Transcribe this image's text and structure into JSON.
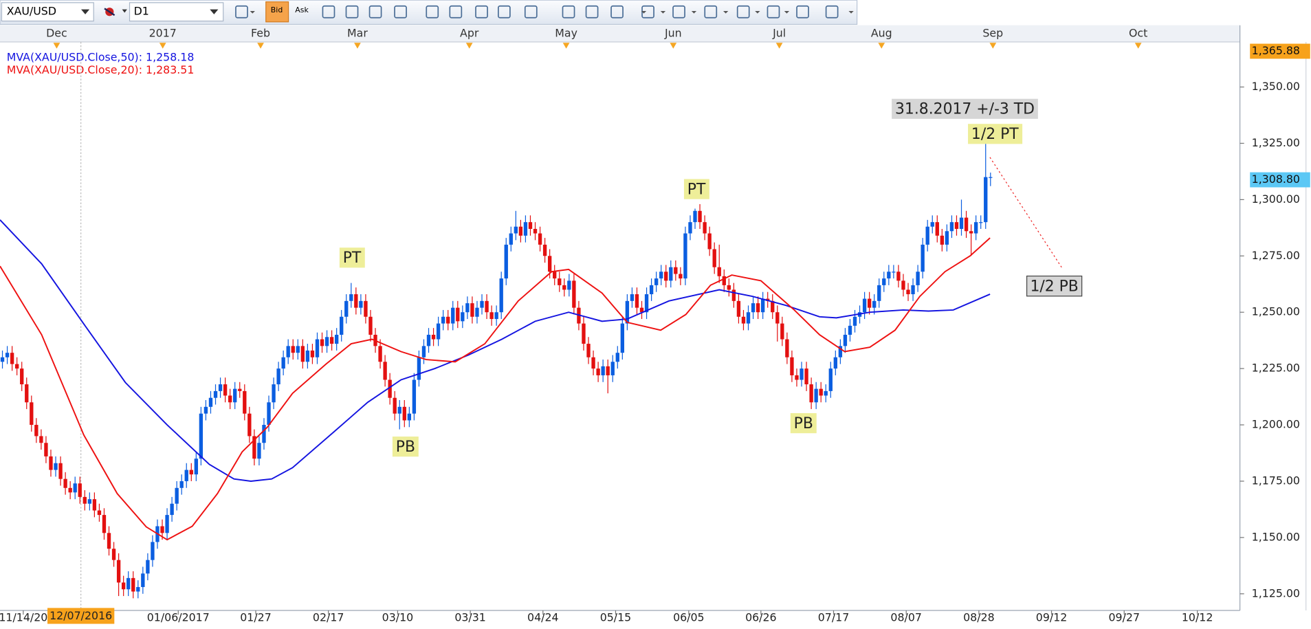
{
  "toolbar": {
    "timeframe": "D1",
    "bid": "Bid",
    "ask": "Ask"
  },
  "chart_data": {
    "type": "candlestick",
    "xlim": [
      0,
      256
    ],
    "ylim": [
      1117.6,
      1370
    ],
    "yticks": [
      {
        "value": 1125,
        "label": "1,125.00"
      },
      {
        "value": 1150,
        "label": "1,150.00"
      },
      {
        "value": 1175,
        "label": "1,175.00"
      },
      {
        "value": 1200,
        "label": "1,200.00"
      },
      {
        "value": 1225,
        "label": "1,225.00"
      },
      {
        "value": 1250,
        "label": "1,250.00"
      },
      {
        "value": 1275,
        "label": "1,275.00"
      },
      {
        "value": 1300,
        "label": "1,300.00"
      },
      {
        "value": 1325,
        "label": "1,325.00"
      },
      {
        "value": 1350,
        "label": "1,350.00"
      }
    ],
    "price_labels": [
      {
        "value": 1365.88,
        "label": "1,365.88",
        "color": "#f7a21b"
      },
      {
        "value": 1308.8,
        "label": "1,308.80",
        "color": "#5cc8f5"
      }
    ],
    "xticks": [
      {
        "value": 4.8,
        "label": "11/14/20"
      },
      {
        "value": 36.8,
        "label": "01/06/2017"
      },
      {
        "value": 52.8,
        "label": "01/27"
      },
      {
        "value": 67.8,
        "label": "02/17"
      },
      {
        "value": 82.1,
        "label": "03/10"
      },
      {
        "value": 97.1,
        "label": "03/31"
      },
      {
        "value": 112.1,
        "label": "04/24"
      },
      {
        "value": 127.1,
        "label": "05/15"
      },
      {
        "value": 142.2,
        "label": "06/05"
      },
      {
        "value": 157.1,
        "label": "06/26"
      },
      {
        "value": 172.1,
        "label": "07/17"
      },
      {
        "value": 187.1,
        "label": "08/07"
      },
      {
        "value": 202.1,
        "label": "08/28"
      },
      {
        "value": 217.1,
        "label": "09/12"
      },
      {
        "value": 232.1,
        "label": "09/27"
      },
      {
        "value": 247.2,
        "label": "10/12"
      }
    ],
    "x2ticks": [
      {
        "value": 11.7,
        "label": "Dec"
      },
      {
        "value": 33.6,
        "label": "2017"
      },
      {
        "value": 53.8,
        "label": "Feb"
      },
      {
        "value": 73.8,
        "label": "Mar"
      },
      {
        "value": 96.9,
        "label": "Apr"
      },
      {
        "value": 116.9,
        "label": "May"
      },
      {
        "value": 139,
        "label": "Jun"
      },
      {
        "value": 160.9,
        "label": "Jul"
      },
      {
        "value": 182,
        "label": "Aug"
      },
      {
        "value": 205,
        "label": "Sep"
      },
      {
        "value": 235,
        "label": "Oct"
      }
    ],
    "cursor": {
      "value": 16.7,
      "label": "12/07/2016",
      "color": "#f7a21b"
    },
    "series": [
      {
        "name": "XAU/USD",
        "type": "candlestick",
        "up_color": "#0b5ee0",
        "down_color": "#e31010",
        "open": [
          1228,
          1230,
          1232,
          1227,
          1225,
          1218,
          1210,
          1200,
          1195,
          1192,
          1186,
          1180,
          1183,
          1176,
          1172,
          1170,
          1174,
          1168,
          1165,
          1167,
          1162,
          1160,
          1152,
          1145,
          1140,
          1130,
          1127,
          1132,
          1126,
          1128,
          1134,
          1140,
          1148,
          1155,
          1152,
          1160,
          1165,
          1172,
          1175,
          1180,
          1178,
          1185,
          1205,
          1208,
          1212,
          1215,
          1218,
          1213,
          1210,
          1216,
          1215,
          1205,
          1195,
          1185,
          1192,
          1200,
          1210,
          1218,
          1225,
          1230,
          1235,
          1232,
          1235,
          1228,
          1233,
          1230,
          1238,
          1235,
          1239,
          1236,
          1240,
          1248,
          1255,
          1258,
          1252,
          1255,
          1248,
          1240,
          1235,
          1228,
          1220,
          1212,
          1205,
          1208,
          1202,
          1205,
          1220,
          1230,
          1235,
          1240,
          1238,
          1245,
          1248,
          1245,
          1252,
          1246,
          1250,
          1254,
          1248,
          1252,
          1255,
          1250,
          1247,
          1250,
          1265,
          1280,
          1285,
          1288,
          1284,
          1290,
          1287,
          1285,
          1280,
          1275,
          1268,
          1265,
          1262,
          1260,
          1264,
          1252,
          1245,
          1236,
          1230,
          1225,
          1222,
          1226,
          1222,
          1228,
          1232,
          1245,
          1255,
          1258,
          1252,
          1250,
          1258,
          1262,
          1265,
          1268,
          1264,
          1270,
          1267,
          1265,
          1285,
          1290,
          1295,
          1290,
          1285,
          1278,
          1270,
          1266,
          1262,
          1260,
          1255,
          1248,
          1245,
          1250,
          1254,
          1250,
          1256,
          1255,
          1250,
          1245,
          1238,
          1230,
          1222,
          1220,
          1225,
          1218,
          1210,
          1216,
          1213,
          1215,
          1225,
          1230,
          1235,
          1240,
          1244,
          1248,
          1250,
          1256,
          1252,
          1255,
          1262,
          1265,
          1268,
          1268,
          1264,
          1260,
          1258,
          1262,
          1268,
          1280,
          1288,
          1290,
          1284,
          1280,
          1286,
          1290,
          1287,
          1292,
          1286,
          1285,
          1290,
          1290,
          1310
        ],
        "high": [
          1233,
          1235,
          1235,
          1230,
          1228,
          1221,
          1213,
          1203,
          1198,
          1195,
          1189,
          1186,
          1186,
          1179,
          1175,
          1177,
          1177,
          1171,
          1170,
          1170,
          1165,
          1163,
          1155,
          1148,
          1143,
          1133,
          1135,
          1135,
          1131,
          1137,
          1143,
          1151,
          1158,
          1158,
          1163,
          1168,
          1175,
          1178,
          1183,
          1183,
          1188,
          1208,
          1211,
          1215,
          1218,
          1221,
          1221,
          1216,
          1219,
          1219,
          1218,
          1208,
          1198,
          1195,
          1203,
          1213,
          1221,
          1228,
          1233,
          1238,
          1238,
          1238,
          1238,
          1236,
          1236,
          1241,
          1241,
          1242,
          1242,
          1243,
          1251,
          1258,
          1263,
          1261,
          1258,
          1258,
          1251,
          1243,
          1238,
          1231,
          1223,
          1215,
          1211,
          1211,
          1208,
          1223,
          1233,
          1238,
          1243,
          1243,
          1248,
          1251,
          1251,
          1255,
          1255,
          1253,
          1257,
          1257,
          1255,
          1258,
          1258,
          1253,
          1253,
          1268,
          1283,
          1288,
          1295,
          1291,
          1293,
          1293,
          1290,
          1288,
          1283,
          1278,
          1271,
          1268,
          1265,
          1267,
          1267,
          1255,
          1248,
          1239,
          1233,
          1228,
          1229,
          1229,
          1231,
          1235,
          1248,
          1258,
          1261,
          1261,
          1255,
          1261,
          1265,
          1268,
          1271,
          1271,
          1273,
          1273,
          1270,
          1288,
          1293,
          1296,
          1298,
          1293,
          1288,
          1281,
          1280,
          1269,
          1265,
          1263,
          1258,
          1251,
          1253,
          1257,
          1257,
          1259,
          1259,
          1258,
          1253,
          1248,
          1241,
          1233,
          1225,
          1228,
          1228,
          1221,
          1219,
          1219,
          1218,
          1228,
          1233,
          1238,
          1243,
          1247,
          1251,
          1253,
          1259,
          1259,
          1258,
          1265,
          1268,
          1271,
          1271,
          1271,
          1267,
          1263,
          1265,
          1271,
          1283,
          1291,
          1293,
          1293,
          1287,
          1289,
          1293,
          1293,
          1300,
          1295,
          1289,
          1293,
          1293,
          1325,
          1312
        ],
        "low": [
          1225,
          1227,
          1224,
          1222,
          1215,
          1207,
          1197,
          1192,
          1189,
          1183,
          1177,
          1177,
          1173,
          1169,
          1167,
          1167,
          1165,
          1162,
          1162,
          1159,
          1157,
          1149,
          1142,
          1137,
          1124,
          1124,
          1124,
          1123,
          1123,
          1125,
          1131,
          1137,
          1145,
          1149,
          1149,
          1157,
          1162,
          1169,
          1172,
          1175,
          1175,
          1182,
          1202,
          1205,
          1209,
          1212,
          1210,
          1207,
          1207,
          1212,
          1202,
          1192,
          1182,
          1182,
          1189,
          1197,
          1207,
          1215,
          1222,
          1227,
          1229,
          1229,
          1225,
          1225,
          1227,
          1227,
          1232,
          1232,
          1233,
          1233,
          1237,
          1245,
          1252,
          1249,
          1249,
          1245,
          1237,
          1232,
          1225,
          1217,
          1209,
          1202,
          1198,
          1199,
          1199,
          1202,
          1217,
          1227,
          1232,
          1235,
          1235,
          1242,
          1242,
          1242,
          1243,
          1243,
          1247,
          1245,
          1245,
          1249,
          1247,
          1244,
          1244,
          1247,
          1262,
          1277,
          1282,
          1281,
          1281,
          1284,
          1282,
          1277,
          1272,
          1265,
          1262,
          1259,
          1257,
          1257,
          1249,
          1242,
          1233,
          1227,
          1222,
          1219,
          1219,
          1214,
          1219,
          1225,
          1229,
          1242,
          1252,
          1249,
          1247,
          1247,
          1255,
          1259,
          1262,
          1261,
          1261,
          1264,
          1262,
          1262,
          1282,
          1287,
          1287,
          1282,
          1275,
          1267,
          1263,
          1259,
          1257,
          1252,
          1245,
          1242,
          1242,
          1247,
          1247,
          1247,
          1252,
          1247,
          1237,
          1235,
          1227,
          1219,
          1217,
          1217,
          1215,
          1207,
          1207,
          1210,
          1210,
          1212,
          1222,
          1227,
          1232,
          1237,
          1241,
          1245,
          1247,
          1249,
          1249,
          1252,
          1259,
          1262,
          1265,
          1261,
          1257,
          1255,
          1255,
          1259,
          1265,
          1277,
          1285,
          1281,
          1277,
          1277,
          1283,
          1284,
          1284,
          1283,
          1275,
          1282,
          1287,
          1287,
          1306
        ],
        "close": [
          1230,
          1232,
          1227,
          1225,
          1218,
          1210,
          1200,
          1195,
          1192,
          1186,
          1180,
          1183,
          1176,
          1172,
          1170,
          1174,
          1168,
          1165,
          1167,
          1162,
          1160,
          1152,
          1145,
          1140,
          1130,
          1127,
          1132,
          1126,
          1128,
          1134,
          1140,
          1148,
          1155,
          1152,
          1160,
          1165,
          1172,
          1175,
          1180,
          1178,
          1185,
          1205,
          1208,
          1212,
          1215,
          1218,
          1213,
          1210,
          1216,
          1215,
          1205,
          1195,
          1185,
          1192,
          1200,
          1210,
          1218,
          1225,
          1230,
          1235,
          1232,
          1235,
          1228,
          1233,
          1230,
          1238,
          1235,
          1239,
          1236,
          1240,
          1248,
          1255,
          1258,
          1252,
          1255,
          1248,
          1240,
          1235,
          1228,
          1220,
          1212,
          1205,
          1208,
          1202,
          1205,
          1220,
          1230,
          1235,
          1240,
          1238,
          1245,
          1248,
          1245,
          1252,
          1246,
          1250,
          1254,
          1248,
          1252,
          1255,
          1250,
          1247,
          1250,
          1265,
          1280,
          1285,
          1288,
          1284,
          1290,
          1287,
          1285,
          1280,
          1275,
          1268,
          1265,
          1262,
          1260,
          1264,
          1252,
          1245,
          1236,
          1230,
          1225,
          1222,
          1226,
          1222,
          1228,
          1232,
          1245,
          1255,
          1258,
          1252,
          1250,
          1258,
          1262,
          1265,
          1268,
          1264,
          1270,
          1267,
          1265,
          1285,
          1290,
          1295,
          1290,
          1285,
          1278,
          1270,
          1266,
          1262,
          1260,
          1255,
          1248,
          1245,
          1250,
          1254,
          1250,
          1256,
          1255,
          1250,
          1245,
          1238,
          1230,
          1222,
          1220,
          1225,
          1218,
          1210,
          1216,
          1213,
          1215,
          1225,
          1230,
          1235,
          1240,
          1244,
          1248,
          1250,
          1256,
          1252,
          1255,
          1262,
          1265,
          1268,
          1268,
          1264,
          1260,
          1258,
          1262,
          1268,
          1280,
          1288,
          1290,
          1284,
          1280,
          1286,
          1290,
          1287,
          1292,
          1286,
          1285,
          1290,
          1290,
          1310,
          1310
        ]
      },
      {
        "name": "MVA(XAU/USD.Close,50): 1,258.18",
        "type": "line",
        "color": "#1414e0",
        "x": [
          0,
          8.6,
          17.3,
          25.9,
          34.5,
          43.2,
          48.3,
          51.8,
          56.1,
          60.4,
          69,
          75.9,
          82.8,
          89.8,
          96.7,
          103.6,
          110.5,
          117.4,
          124.3,
          129.5,
          138.1,
          148.5,
          155.4,
          162.3,
          169.2,
          172.7,
          179.6,
          186.5,
          191.7,
          196.8,
          204.4
        ],
        "values": [
          1291,
          1271.5,
          1244.8,
          1218.8,
          1200,
          1182.5,
          1176,
          1175,
          1176,
          1181,
          1197,
          1210,
          1220,
          1225,
          1231,
          1238,
          1246,
          1250,
          1246,
          1247,
          1255,
          1260,
          1257,
          1253,
          1248,
          1247.5,
          1250,
          1251,
          1250.5,
          1251,
          1258
        ]
      },
      {
        "name": "MVA(XAU/USD.Close,20): 1,283.51",
        "type": "line",
        "color": "#ee1111",
        "x": [
          0,
          8.6,
          17.3,
          24.2,
          30.2,
          34.5,
          39.7,
          44.9,
          50,
          55.2,
          60.4,
          67.3,
          72.5,
          76.8,
          82.8,
          88,
          94,
          100.1,
          107,
          113.9,
          117.4,
          124.3,
          129.5,
          136.4,
          141.6,
          146.7,
          151.1,
          157.1,
          164,
          169.2,
          174.4,
          179.6,
          184.8,
          189.9,
          195.1,
          200.3,
          204.4
        ],
        "values": [
          1270.5,
          1240,
          1195.5,
          1169.5,
          1154.7,
          1149,
          1155,
          1169.5,
          1188,
          1199,
          1214,
          1227,
          1236,
          1238,
          1232.5,
          1229,
          1228,
          1236,
          1255,
          1268,
          1269,
          1258.5,
          1245.5,
          1242,
          1249,
          1262,
          1266.5,
          1264,
          1251,
          1240,
          1232.5,
          1234.5,
          1242,
          1257,
          1268,
          1275,
          1283
        ]
      }
    ],
    "annotations": [
      {
        "text": "PT",
        "color": "#eeee99"
      },
      {
        "text": "PB",
        "color": "#eeee99"
      },
      {
        "text": "PT",
        "color": "#eeee99"
      },
      {
        "text": "PB",
        "color": "#eeee99"
      },
      {
        "text": "31.8.2017 +/-3 TD",
        "color": "#d6d6d6"
      },
      {
        "text": "1/2 PT",
        "color": "#eeee99"
      },
      {
        "text": "1/2 PB",
        "color": "#d6d6d6"
      }
    ]
  }
}
